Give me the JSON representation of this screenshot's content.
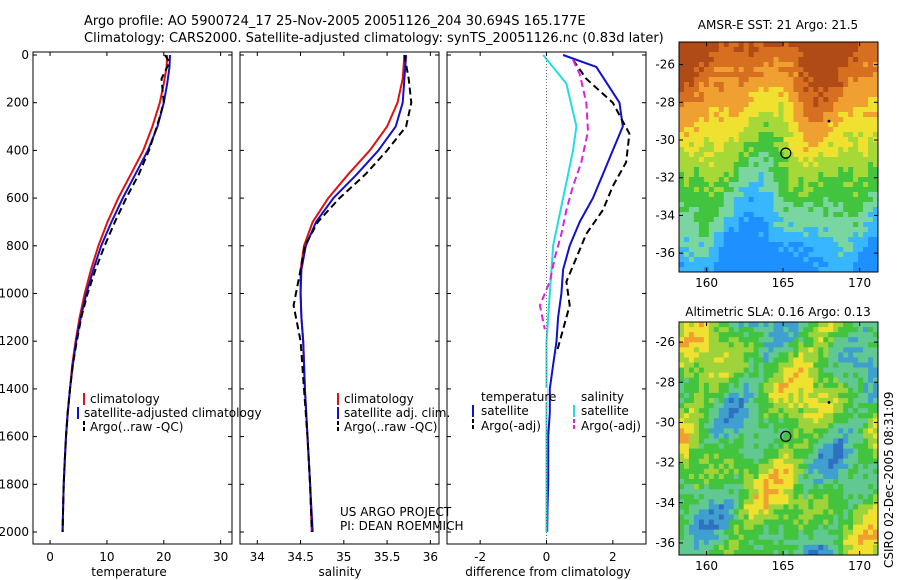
{
  "header": {
    "line1": "Argo profile: AO 5900724_17 25-Nov-2005 20051126_204 30.694S 165.177E",
    "line2": "Climatology: CARS2000. Satellite-adjusted climatology: synTS_20051126.nc (0.83d later)"
  },
  "footer": {
    "project": "US ARGO PROJECT",
    "pi": "PI: DEAN ROEMMICH",
    "credit": "CSIRO 02-Dec-2005 08:31:09"
  },
  "colors": {
    "climatology": "#dd1111",
    "satellite": "#1111cc",
    "argo": "#000000",
    "salinity_satellite": "#22dddd",
    "salinity_argo": "#dd22dd",
    "dotted_zero": "#666666"
  },
  "chart_data": [
    {
      "type": "line",
      "id": "temperature",
      "xlabel": "temperature",
      "ylabel": "",
      "xlim": [
        -3,
        32
      ],
      "ylim": [
        2050,
        0
      ],
      "xticks": [
        0,
        10,
        20,
        30
      ],
      "yticks": [
        0,
        200,
        400,
        600,
        800,
        1000,
        1200,
        1400,
        1600,
        1800,
        2000
      ],
      "legend_position": "bottom-center",
      "series": [
        {
          "name": "climatology",
          "style": "solid",
          "color": "climatology",
          "points": [
            [
              20.6,
              0
            ],
            [
              20.5,
              50
            ],
            [
              20.0,
              120
            ],
            [
              19.3,
              200
            ],
            [
              18.0,
              300
            ],
            [
              16.4,
              400
            ],
            [
              14.2,
              500
            ],
            [
              12.0,
              600
            ],
            [
              10.1,
              700
            ],
            [
              8.5,
              800
            ],
            [
              7.2,
              900
            ],
            [
              6.1,
              1000
            ],
            [
              5.2,
              1100
            ],
            [
              4.5,
              1200
            ],
            [
              3.9,
              1300
            ],
            [
              3.5,
              1400
            ],
            [
              3.1,
              1500
            ],
            [
              2.8,
              1600
            ],
            [
              2.6,
              1700
            ],
            [
              2.4,
              1800
            ],
            [
              2.3,
              1900
            ],
            [
              2.2,
              2000
            ]
          ]
        },
        {
          "name": "satellite-adjusted climatology",
          "style": "solid",
          "color": "satellite",
          "points": [
            [
              21.1,
              0
            ],
            [
              21.0,
              50
            ],
            [
              20.6,
              120
            ],
            [
              20.0,
              200
            ],
            [
              18.9,
              300
            ],
            [
              17.2,
              400
            ],
            [
              15.0,
              500
            ],
            [
              12.8,
              600
            ],
            [
              10.8,
              700
            ],
            [
              9.0,
              800
            ],
            [
              7.6,
              900
            ],
            [
              6.4,
              1000
            ],
            [
              5.4,
              1100
            ],
            [
              4.6,
              1200
            ],
            [
              4.0,
              1300
            ],
            [
              3.5,
              1400
            ],
            [
              3.1,
              1500
            ],
            [
              2.8,
              1600
            ],
            [
              2.6,
              1700
            ],
            [
              2.4,
              1800
            ],
            [
              2.3,
              1900
            ],
            [
              2.2,
              2000
            ]
          ]
        },
        {
          "name": "Argo(..raw -QC)",
          "style": "dashed",
          "color": "argo",
          "points": [
            [
              20.2,
              0
            ],
            [
              21.0,
              30
            ],
            [
              19.6,
              100
            ],
            [
              20.0,
              200
            ],
            [
              18.8,
              300
            ],
            [
              17.4,
              400
            ],
            [
              15.6,
              500
            ],
            [
              13.4,
              600
            ],
            [
              11.4,
              700
            ],
            [
              9.6,
              800
            ],
            [
              8.0,
              900
            ],
            [
              6.6,
              1000
            ],
            [
              5.5,
              1100
            ],
            [
              4.7,
              1200
            ],
            [
              4.0,
              1300
            ],
            [
              3.5,
              1400
            ],
            [
              3.1,
              1500
            ],
            [
              2.8,
              1600
            ],
            [
              2.6,
              1700
            ],
            [
              2.4,
              1800
            ],
            [
              2.3,
              1900
            ],
            [
              2.2,
              2000
            ]
          ]
        }
      ]
    },
    {
      "type": "line",
      "id": "salinity",
      "xlabel": "salinity",
      "ylabel": "",
      "xlim": [
        33.8,
        36.1
      ],
      "ylim": [
        2050,
        0
      ],
      "xticks": [
        34,
        34.5,
        35,
        35.5,
        36
      ],
      "legend_position": "bottom-right",
      "series": [
        {
          "name": "climatology",
          "style": "solid",
          "color": "climatology",
          "points": [
            [
              35.7,
              0
            ],
            [
              35.68,
              100
            ],
            [
              35.62,
              200
            ],
            [
              35.5,
              300
            ],
            [
              35.3,
              400
            ],
            [
              35.05,
              500
            ],
            [
              34.82,
              600
            ],
            [
              34.64,
              700
            ],
            [
              34.54,
              800
            ],
            [
              34.5,
              900
            ],
            [
              34.5,
              1000
            ],
            [
              34.51,
              1100
            ],
            [
              34.53,
              1200
            ],
            [
              34.55,
              1400
            ],
            [
              34.58,
              1600
            ],
            [
              34.61,
              1800
            ],
            [
              34.63,
              2000
            ]
          ]
        },
        {
          "name": "satellite adj. clim.",
          "style": "solid",
          "color": "satellite",
          "points": [
            [
              35.72,
              0
            ],
            [
              35.7,
              100
            ],
            [
              35.68,
              200
            ],
            [
              35.6,
              300
            ],
            [
              35.4,
              400
            ],
            [
              35.15,
              500
            ],
            [
              34.88,
              600
            ],
            [
              34.68,
              700
            ],
            [
              34.56,
              800
            ],
            [
              34.51,
              900
            ],
            [
              34.5,
              1000
            ],
            [
              34.51,
              1100
            ],
            [
              34.53,
              1200
            ],
            [
              34.55,
              1400
            ],
            [
              34.58,
              1600
            ],
            [
              34.61,
              1800
            ],
            [
              34.64,
              2000
            ]
          ]
        },
        {
          "name": "Argo(..raw -QC)",
          "style": "dashed",
          "color": "argo",
          "points": [
            [
              35.7,
              0
            ],
            [
              35.75,
              100
            ],
            [
              35.78,
              200
            ],
            [
              35.72,
              300
            ],
            [
              35.5,
              400
            ],
            [
              35.25,
              500
            ],
            [
              34.95,
              600
            ],
            [
              34.7,
              700
            ],
            [
              34.55,
              800
            ],
            [
              34.5,
              900
            ],
            [
              34.42,
              1050
            ],
            [
              34.5,
              1200
            ],
            [
              34.54,
              1400
            ],
            [
              34.58,
              1600
            ],
            [
              34.61,
              1800
            ],
            [
              34.63,
              2000
            ]
          ]
        }
      ]
    },
    {
      "type": "line",
      "id": "difference",
      "xlabel": "difference from climatology",
      "ylabel": "",
      "xlim": [
        -3,
        3
      ],
      "ylim": [
        2050,
        0
      ],
      "xticks": [
        -2,
        0,
        2
      ],
      "legend_position": "bottom-center",
      "legend_groups": [
        {
          "title": "temperature",
          "entries": [
            "satellite",
            "Argo(-adj)"
          ]
        },
        {
          "title": "salinity",
          "entries": [
            "satellite",
            "Argo(-adj)"
          ]
        }
      ],
      "series": [
        {
          "name": "satellite",
          "group": "temperature",
          "style": "solid",
          "color": "satellite",
          "points": [
            [
              0.5,
              0
            ],
            [
              1.5,
              50
            ],
            [
              2.2,
              200
            ],
            [
              2.3,
              300
            ],
            [
              2.0,
              400
            ],
            [
              1.7,
              500
            ],
            [
              1.4,
              600
            ],
            [
              1.0,
              700
            ],
            [
              0.7,
              800
            ],
            [
              0.5,
              900
            ],
            [
              0.45,
              1000
            ],
            [
              0.35,
              1100
            ],
            [
              0.3,
              1200
            ],
            [
              0.2,
              1300
            ],
            [
              0.1,
              1400
            ],
            [
              0.1,
              1500
            ],
            [
              0.05,
              1600
            ],
            [
              0.05,
              1700
            ],
            [
              0.05,
              1800
            ],
            [
              0.03,
              1900
            ],
            [
              0.02,
              2000
            ]
          ]
        },
        {
          "name": "Argo(-adj)",
          "group": "temperature",
          "style": "dashed",
          "color": "argo",
          "points": [
            [
              0.8,
              20
            ],
            [
              1.2,
              100
            ],
            [
              2.0,
              200
            ],
            [
              2.5,
              330
            ],
            [
              2.4,
              450
            ],
            [
              2.0,
              550
            ],
            [
              1.7,
              650
            ],
            [
              1.2,
              750
            ],
            [
              0.9,
              850
            ],
            [
              0.6,
              950
            ],
            [
              0.7,
              1050
            ],
            [
              0.5,
              1150
            ],
            [
              0.3,
              1250
            ]
          ]
        },
        {
          "name": "satellite",
          "group": "salinity",
          "style": "solid",
          "color": "salinity_satellite",
          "points": [
            [
              -0.1,
              0
            ],
            [
              0.6,
              120
            ],
            [
              0.9,
              300
            ],
            [
              0.8,
              400
            ],
            [
              0.65,
              500
            ],
            [
              0.5,
              600
            ],
            [
              0.35,
              700
            ],
            [
              0.2,
              800
            ],
            [
              0.15,
              900
            ],
            [
              0.1,
              1000
            ],
            [
              0.05,
              1100
            ],
            [
              0.0,
              1200
            ],
            [
              0.0,
              1400
            ],
            [
              0.0,
              1600
            ],
            [
              0.0,
              1800
            ],
            [
              0.0,
              2000
            ]
          ]
        },
        {
          "name": "Argo(-adj)",
          "group": "salinity",
          "style": "dashed",
          "color": "salinity_argo",
          "points": [
            [
              0.8,
              20
            ],
            [
              1.0,
              80
            ],
            [
              1.2,
              200
            ],
            [
              1.25,
              320
            ],
            [
              1.05,
              450
            ],
            [
              0.8,
              550
            ],
            [
              0.6,
              650
            ],
            [
              0.45,
              750
            ],
            [
              0.25,
              850
            ],
            [
              0.1,
              950
            ],
            [
              -0.2,
              1050
            ],
            [
              -0.05,
              1150
            ]
          ]
        }
      ]
    },
    {
      "type": "heatmap",
      "id": "sst_map",
      "title": "AMSR-E SST: 21 Argo: 21.5",
      "xlim": [
        158.2,
        171.2
      ],
      "ylim": [
        -37,
        -24.8
      ],
      "xticks": [
        160,
        165,
        170
      ],
      "yticks": [
        -26,
        -28,
        -30,
        -32,
        -34,
        -36
      ],
      "marker": {
        "lon": 165.177,
        "lat": -30.694
      },
      "secondary_point": {
        "lon": 168.0,
        "lat": -29.0
      },
      "palette": [
        "#1e90ff",
        "#38b6ff",
        "#7ad6a0",
        "#43c43e",
        "#a6d838",
        "#f0e030",
        "#f0a030",
        "#d67020",
        "#b04a16"
      ],
      "legend": "none"
    },
    {
      "type": "heatmap",
      "id": "sla_map",
      "title": "Altimetric SLA: 0.16 Argo: 0.13",
      "xlim": [
        158.2,
        171.2
      ],
      "ylim": [
        -36.6,
        -25.0
      ],
      "xticks": [
        160,
        165,
        170
      ],
      "yticks": [
        -26,
        -28,
        -30,
        -32,
        -34,
        -36
      ],
      "marker": {
        "lon": 165.177,
        "lat": -30.694
      },
      "secondary_point": {
        "lon": 168.0,
        "lat": -29.0
      },
      "palette": [
        "#3070c0",
        "#3fa0d0",
        "#60c890",
        "#43c43e",
        "#9ed43a",
        "#f0e030",
        "#f0a030",
        "#e07020"
      ],
      "legend": "none"
    }
  ]
}
